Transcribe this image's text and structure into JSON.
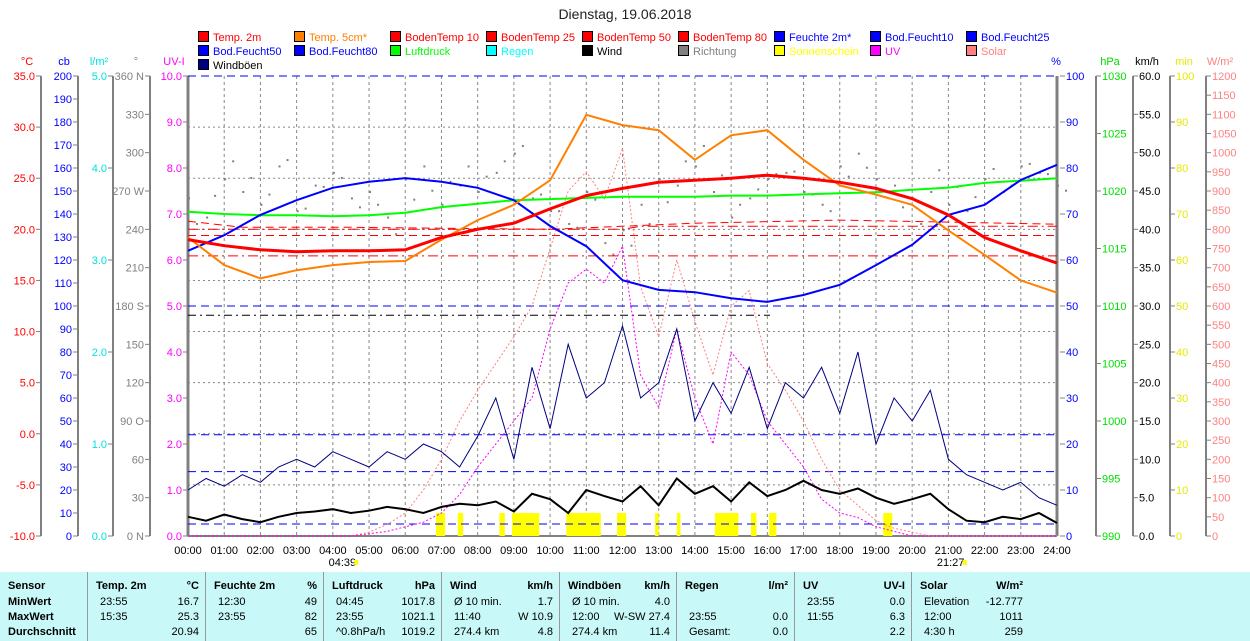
{
  "chart_data": {
    "type": "line",
    "title": "Dienstag, 19.06.2018",
    "x_ticks": [
      "00:00",
      "01:00",
      "02:00",
      "03:00",
      "04:00",
      "05:00",
      "06:00",
      "07:00",
      "08:00",
      "09:00",
      "10:00",
      "11:00",
      "12:00",
      "13:00",
      "14:00",
      "15:00",
      "16:00",
      "17:00",
      "18:00",
      "19:00",
      "20:00",
      "21:00",
      "22:00",
      "23:00",
      "24:00"
    ],
    "sunrise": "04:39",
    "sunset": "21:27",
    "legend": [
      {
        "name": "Temp. 2m",
        "color": "#ff0000"
      },
      {
        "name": "Temp. 5cm*",
        "color": "#ff8000"
      },
      {
        "name": "BodenTemp 10",
        "color": "#ff0000"
      },
      {
        "name": "BodenTemp 25",
        "color": "#ff0000"
      },
      {
        "name": "BodenTemp 50",
        "color": "#ff0000"
      },
      {
        "name": "BodenTemp 80",
        "color": "#ff0000"
      },
      {
        "name": "Feuchte 2m*",
        "color": "#0000ff"
      },
      {
        "name": "Bod.Feucht10",
        "color": "#0000ff"
      },
      {
        "name": "Bod.Feucht25",
        "color": "#0000ff"
      },
      {
        "name": "Bod.Feucht50",
        "color": "#0000ff"
      },
      {
        "name": "Bod.Feucht80",
        "color": "#0000ff"
      },
      {
        "name": "Luftdruck",
        "color": "#00ff00"
      },
      {
        "name": "Regen",
        "color": "#00ffff"
      },
      {
        "name": "Wind",
        "color": "#000000"
      },
      {
        "name": "Richtung",
        "color": "#808080"
      },
      {
        "name": "Sonnenschein",
        "color": "#ffff00"
      },
      {
        "name": "UV",
        "color": "#ff00ff"
      },
      {
        "name": "Solar",
        "color": "#ff8080"
      },
      {
        "name": "Windböen",
        "color": "#000080"
      }
    ],
    "axes_left": [
      {
        "unit": "°C",
        "color": "#ff0000",
        "ticks": [
          "35.0",
          "30.0",
          "25.0",
          "20.0",
          "15.0",
          "10.0",
          "5.0",
          "0.0",
          "-5.0",
          "-10.0"
        ]
      },
      {
        "unit": "cb",
        "color": "#0000ff",
        "ticks": [
          "200",
          "190",
          "180",
          "170",
          "160",
          "150",
          "140",
          "130",
          "120",
          "110",
          "100",
          "90",
          "80",
          "70",
          "60",
          "50",
          "40",
          "30",
          "20",
          "10",
          "0"
        ]
      },
      {
        "unit": "l/m²",
        "color": "#00e0e0",
        "ticks": [
          "5.0",
          "4.0",
          "3.0",
          "2.0",
          "1.0",
          "0.0"
        ]
      },
      {
        "unit": "°",
        "color": "#808080",
        "ticks": [
          "360 N",
          "330",
          "300",
          "270 W",
          "240",
          "210",
          "180 S",
          "150",
          "120",
          "90  O",
          "60",
          "30",
          "0  N"
        ]
      },
      {
        "unit": "UV-I",
        "color": "#ff00ff",
        "ticks": [
          "10.0",
          "9.0",
          "8.0",
          "7.0",
          "6.0",
          "5.0",
          "4.0",
          "3.0",
          "2.0",
          "1.0",
          "0.0"
        ]
      }
    ],
    "axes_right": [
      {
        "unit": "%",
        "color": "#0000ff",
        "ticks": [
          "100",
          "90",
          "80",
          "70",
          "60",
          "50",
          "40",
          "30",
          "20",
          "10",
          "0"
        ]
      },
      {
        "unit": "hPa",
        "color": "#00dd00",
        "ticks": [
          "1030",
          "1025",
          "1020",
          "1015",
          "1010",
          "1005",
          "1000",
          "995",
          "990"
        ]
      },
      {
        "unit": "km/h",
        "color": "#000000",
        "ticks": [
          "60.0",
          "55.0",
          "50.0",
          "45.0",
          "40.0",
          "35.0",
          "30.0",
          "25.0",
          "20.0",
          "15.0",
          "10.0",
          "5.0",
          "0.0"
        ]
      },
      {
        "unit": "min",
        "color": "#e8e800",
        "ticks": [
          "100",
          "90",
          "80",
          "70",
          "60",
          "50",
          "40",
          "30",
          "20",
          "10",
          "0"
        ]
      },
      {
        "unit": "W/m²",
        "color": "#ff8080",
        "ticks": [
          "1200",
          "1150",
          "1100",
          "1050",
          "1000",
          "950",
          "900",
          "850",
          "800",
          "750",
          "700",
          "650",
          "600",
          "550",
          "500",
          "450",
          "400",
          "350",
          "300",
          "250",
          "200",
          "150",
          "100",
          "50",
          "0"
        ]
      }
    ],
    "hourly_x": [
      0,
      1,
      2,
      3,
      4,
      5,
      6,
      7,
      8,
      9,
      10,
      11,
      12,
      13,
      14,
      15,
      16,
      17,
      18,
      19,
      20,
      21,
      22,
      23,
      24
    ],
    "temp2m": [
      19.0,
      18.4,
      18.0,
      17.8,
      17.9,
      17.9,
      18.0,
      19.2,
      20.0,
      20.6,
      22.0,
      23.3,
      24.0,
      24.6,
      24.8,
      25.0,
      25.3,
      25.0,
      24.6,
      24.0,
      23.0,
      21.4,
      19.2,
      17.9,
      16.7
    ],
    "temp5cm": [
      19.2,
      16.5,
      15.2,
      16.0,
      16.5,
      16.8,
      16.9,
      19.0,
      20.9,
      22.4,
      24.8,
      31.2,
      30.2,
      29.7,
      26.8,
      29.2,
      29.7,
      26.8,
      24.3,
      23.4,
      22.4,
      19.9,
      17.5,
      15.0,
      13.8
    ],
    "feuchte2m": [
      62,
      65.4,
      69.8,
      73,
      75.7,
      77,
      77.8,
      77,
      75.7,
      73,
      67.4,
      63,
      55.6,
      53.5,
      53,
      51.7,
      50.9,
      52.4,
      54.6,
      58.9,
      63.3,
      69.8,
      72,
      77.4,
      80.7
    ],
    "luftdruck": [
      1018.2,
      1018.0,
      1017.9,
      1017.9,
      1017.8,
      1017.9,
      1018.1,
      1018.6,
      1018.9,
      1019.2,
      1019.3,
      1019.4,
      1019.5,
      1019.5,
      1019.5,
      1019.6,
      1019.6,
      1019.7,
      1019.8,
      1019.9,
      1020.1,
      1020.3,
      1020.7,
      1020.9,
      1021.1
    ],
    "bodentemp": [
      {
        "name": "BodenTemp 10",
        "points": [
          [
            0,
            20.8
          ],
          [
            1.5,
            20.2
          ],
          [
            4.5,
            20.2
          ],
          [
            10,
            20.0
          ],
          [
            14,
            20.6
          ],
          [
            18,
            20.9
          ],
          [
            24,
            20.5
          ]
        ]
      },
      {
        "name": "BodenTemp 25",
        "points": [
          [
            0,
            20.0
          ],
          [
            12,
            20.0
          ],
          [
            12.5,
            20.3
          ],
          [
            24,
            20.3
          ]
        ]
      },
      {
        "name": "BodenTemp 50",
        "points": [
          [
            0,
            19.4
          ],
          [
            24,
            19.4
          ]
        ]
      },
      {
        "name": "BodenTemp 80",
        "points": [
          [
            0,
            17.4
          ],
          [
            24,
            17.4
          ]
        ]
      }
    ],
    "bodfeucht": [
      {
        "name": "Bod.Feucht10",
        "value": 22
      },
      {
        "name": "Bod.Feucht25",
        "value": 14
      },
      {
        "name": "Bod.Feucht50",
        "value": 50
      },
      {
        "name": "Bod.Feucht80",
        "value": 2.6
      }
    ],
    "halfhour_x": [
      0,
      0.5,
      1,
      1.5,
      2,
      2.5,
      3,
      3.5,
      4,
      4.5,
      5,
      5.5,
      6,
      6.5,
      7,
      7.5,
      8,
      8.5,
      9,
      9.5,
      10,
      10.5,
      11,
      11.5,
      12,
      12.5,
      13,
      13.5,
      14,
      14.5,
      15,
      15.5,
      16,
      16.5,
      17,
      17.5,
      18,
      18.5,
      19,
      19.5,
      20,
      20.5,
      21,
      21.5,
      22,
      22.5,
      23,
      23.5,
      24
    ],
    "wind": [
      2.5,
      2.0,
      2.8,
      2.2,
      1.8,
      2.5,
      3.0,
      3.2,
      3.5,
      3.0,
      3.3,
      3.8,
      3.5,
      3.0,
      3.8,
      4.2,
      4.0,
      4.5,
      3.2,
      5.5,
      4.8,
      3.0,
      6.0,
      5.2,
      4.5,
      6.5,
      4.0,
      7.5,
      5.5,
      6.5,
      4.5,
      7.0,
      5.2,
      6.0,
      7.2,
      6.0,
      5.5,
      6.2,
      5.0,
      4.2,
      4.8,
      5.5,
      3.5,
      2.0,
      1.8,
      2.5,
      2.2,
      3.0,
      1.7
    ],
    "windboeen": [
      6,
      7.5,
      6.5,
      8,
      7,
      9,
      10,
      9,
      11,
      10,
      9,
      11,
      10,
      12,
      11,
      9,
      13,
      18,
      10,
      22,
      14,
      25,
      18,
      20,
      27.4,
      18,
      20,
      27,
      15,
      20,
      16,
      22,
      14,
      20,
      18,
      22,
      16,
      24,
      12,
      18,
      15,
      19,
      10,
      8,
      7,
      6,
      7,
      5,
      4
    ],
    "richtung": [
      265,
      250,
      280,
      270,
      260,
      290,
      255,
      275,
      285,
      265,
      270,
      250,
      280,
      290,
      260,
      275,
      270,
      285,
      300,
      265,
      255,
      245,
      270,
      230,
      240,
      260,
      280,
      275,
      290,
      270,
      250,
      265,
      280,
      285,
      270,
      260,
      290,
      300,
      280,
      275,
      265,
      270,
      260,
      255,
      280,
      270,
      290,
      285,
      275
    ],
    "uv": [
      0,
      0,
      0,
      0,
      0,
      0,
      0,
      0,
      0,
      0,
      0.05,
      0.1,
      0.2,
      0.3,
      0.5,
      0.9,
      1.5,
      2.0,
      2.5,
      3.0,
      4.5,
      5.5,
      5.8,
      5.5,
      6.3,
      3.5,
      2.8,
      4.5,
      3.0,
      2.0,
      4.0,
      3.5,
      2.5,
      2.0,
      1.5,
      0.8,
      0.5,
      0.4,
      0.2,
      0.1,
      0,
      0,
      0,
      0,
      0,
      0,
      0,
      0,
      0
    ],
    "solar": [
      0,
      0,
      0,
      0,
      0,
      0,
      0,
      0,
      0,
      0,
      10,
      30,
      60,
      120,
      200,
      300,
      380,
      450,
      520,
      600,
      750,
      900,
      950,
      880,
      1011,
      650,
      520,
      720,
      560,
      420,
      600,
      640,
      450,
      380,
      300,
      200,
      120,
      80,
      40,
      20,
      10,
      0,
      0,
      0,
      0,
      0,
      0,
      0,
      0
    ],
    "sonnenschein": [
      [
        6.85,
        7.1
      ],
      [
        7.45,
        7.6
      ],
      [
        8.6,
        8.75
      ],
      [
        8.95,
        9.7
      ],
      [
        10.45,
        11.4
      ],
      [
        11.85,
        12.1
      ],
      [
        12.9,
        13.0
      ],
      [
        13.5,
        13.6
      ],
      [
        14.55,
        15.2
      ],
      [
        15.55,
        15.7
      ],
      [
        16.05,
        16.25
      ],
      [
        19.2,
        19.45
      ]
    ]
  },
  "table": {
    "columns": [
      {
        "h1": "Sensor",
        "h2": "",
        "rows": [
          [
            "MinWert",
            ""
          ],
          [
            "MaxWert",
            ""
          ],
          [
            "Durchschnitt",
            ""
          ]
        ]
      },
      {
        "h1": "Temp. 2m",
        "h2": "°C",
        "rows": [
          [
            "23:55",
            "16.7"
          ],
          [
            "15:35",
            "25.3"
          ],
          [
            "",
            "20.94"
          ]
        ]
      },
      {
        "h1": "Feuchte 2m",
        "h2": "%",
        "rows": [
          [
            "12:30",
            "49"
          ],
          [
            "23:55",
            "82"
          ],
          [
            "",
            "65"
          ]
        ]
      },
      {
        "h1": "Luftdruck",
        "h2": "hPa",
        "rows": [
          [
            "04:45",
            "1017.8"
          ],
          [
            "23:55",
            "1021.1"
          ],
          [
            "^0.8hPa/h",
            "1019.2"
          ]
        ]
      },
      {
        "h1": "Wind",
        "h2": "km/h",
        "rows": [
          [
            "Ø 10 min.",
            "1.7"
          ],
          [
            "11:40",
            "W 10.9"
          ],
          [
            "274.4 km",
            "4.8"
          ]
        ]
      },
      {
        "h1": "Windböen",
        "h2": "km/h",
        "rows": [
          [
            "Ø 10 min.",
            "4.0"
          ],
          [
            "12:00",
            "W-SW 27.4"
          ],
          [
            "274.4 km",
            "11.4"
          ]
        ]
      },
      {
        "h1": "Regen",
        "h2": "l/m²",
        "rows": [
          [
            "",
            ""
          ],
          [
            "23:55",
            "0.0"
          ],
          [
            "Gesamt:",
            "0.0"
          ]
        ]
      },
      {
        "h1": "UV",
        "h2": "UV-I",
        "rows": [
          [
            "23:55",
            "0.0"
          ],
          [
            "11:55",
            "6.3"
          ],
          [
            "",
            "2.2"
          ]
        ]
      },
      {
        "h1": "Solar",
        "h2": "W/m²",
        "rows": [
          [
            "Elevation",
            "-12.777"
          ],
          [
            "12:00",
            "1011"
          ],
          [
            "4:30 h",
            "259"
          ]
        ]
      }
    ]
  }
}
